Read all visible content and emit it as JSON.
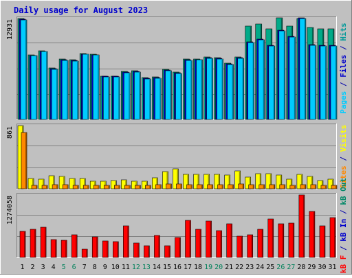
{
  "chart_data": {
    "type": "bar",
    "title": "Daily usage for August 2023",
    "categories": [
      "1",
      "2",
      "3",
      "4",
      "5",
      "6",
      "7",
      "8",
      "9",
      "10",
      "11",
      "12",
      "13",
      "14",
      "15",
      "16",
      "17",
      "18",
      "19",
      "20",
      "21",
      "22",
      "23",
      "24",
      "25",
      "26",
      "27",
      "28",
      "29",
      "30",
      "31"
    ],
    "weekend_days": [
      "5",
      "6",
      "12",
      "13",
      "19",
      "20",
      "26",
      "27"
    ],
    "panels": [
      {
        "id": "hits-files-pages",
        "ylabel_parts": [
          {
            "text": "Pages",
            "color": "#00ccff"
          },
          {
            "text": " / ",
            "color": "#0000aa"
          },
          {
            "text": "Files",
            "color": "#0000cc"
          },
          {
            "text": " / ",
            "color": "#0000aa"
          },
          {
            "text": "Hits",
            "color": "#009999"
          }
        ],
        "max_label": "12931",
        "ylim": [
          0,
          12931
        ],
        "series": [
          {
            "name": "Hits",
            "color": "#00aa88",
            "values": [
              12931,
              8280,
              8820,
              6590,
              7700,
              7620,
              8450,
              8340,
              5580,
              5560,
              6140,
              6210,
              5340,
              5420,
              6390,
              6040,
              7720,
              7750,
              8000,
              7910,
              7190,
              8010,
              12000,
              12200,
              11600,
              13000,
              12000,
              12900,
              11800,
              11600,
              11600
            ]
          },
          {
            "name": "Files",
            "color": "#0000cc",
            "values": [
              12850,
              8200,
              8750,
              6520,
              7620,
              7550,
              8380,
              8280,
              5520,
              5500,
              6080,
              6150,
              5280,
              5360,
              6320,
              5980,
              7640,
              7680,
              7920,
              7840,
              7110,
              7940,
              9950,
              10300,
              9500,
              11400,
              10600,
              13000,
              9600,
              9500,
              9500
            ]
          },
          {
            "name": "Pages",
            "color": "#00ccff",
            "values": [
              12750,
              8150,
              8700,
              6450,
              7560,
              7490,
              8320,
              8230,
              5460,
              5440,
              6010,
              6080,
              5210,
              5290,
              6260,
              5920,
              7570,
              7610,
              7850,
              7780,
              7040,
              7870,
              9880,
              10230,
              9430,
              11340,
              10540,
              12930,
              9540,
              9440,
              9440
            ]
          }
        ]
      },
      {
        "id": "visits-sites",
        "ylabel_parts": [
          {
            "text": "Sites",
            "color": "#ff8800"
          },
          {
            "text": " / ",
            "color": "#0000aa"
          },
          {
            "text": "Visits",
            "color": "#ffff00"
          }
        ],
        "max_label": "861",
        "ylim": [
          0,
          861
        ],
        "series": [
          {
            "name": "Visits",
            "color": "#ffff00",
            "values": [
              861,
              140,
              130,
              175,
              165,
              145,
              140,
              105,
              105,
              110,
              120,
              105,
              105,
              150,
              235,
              275,
              200,
              195,
              200,
              200,
              190,
              240,
              160,
              205,
              210,
              190,
              135,
              200,
              170,
              115,
              135
            ]
          },
          {
            "name": "Sites",
            "color": "#ff8800",
            "values": [
              766,
              50,
              50,
              55,
              55,
              50,
              50,
              45,
              45,
              50,
              50,
              45,
              45,
              55,
              65,
              65,
              60,
              60,
              60,
              60,
              55,
              65,
              55,
              60,
              60,
              55,
              50,
              60,
              55,
              45,
              50
            ]
          }
        ]
      },
      {
        "id": "kbytes",
        "ylabel_parts": [
          {
            "text": "kB F",
            "color": "#ff0000"
          },
          {
            "text": " / ",
            "color": "#0000aa"
          },
          {
            "text": "kB In",
            "color": "#0000cc"
          },
          {
            "text": " / ",
            "color": "#0000aa"
          },
          {
            "text": "kB Out",
            "color": "#008866"
          }
        ],
        "max_label": "1274058",
        "ylim": [
          0,
          1274058
        ],
        "series": [
          {
            "name": "kB F",
            "color": "#ff0000",
            "values": [
              530000,
              570000,
              620000,
              360000,
              350000,
              460000,
              170000,
              420000,
              330000,
              320000,
              640000,
              300000,
              240000,
              450000,
              240000,
              400000,
              760000,
              570000,
              740000,
              550000,
              690000,
              430000,
              460000,
              580000,
              780000,
              680000,
              700000,
              1274000,
              940000,
              640000,
              810000
            ]
          }
        ]
      }
    ],
    "grid": true,
    "legend": "right-vertical"
  }
}
